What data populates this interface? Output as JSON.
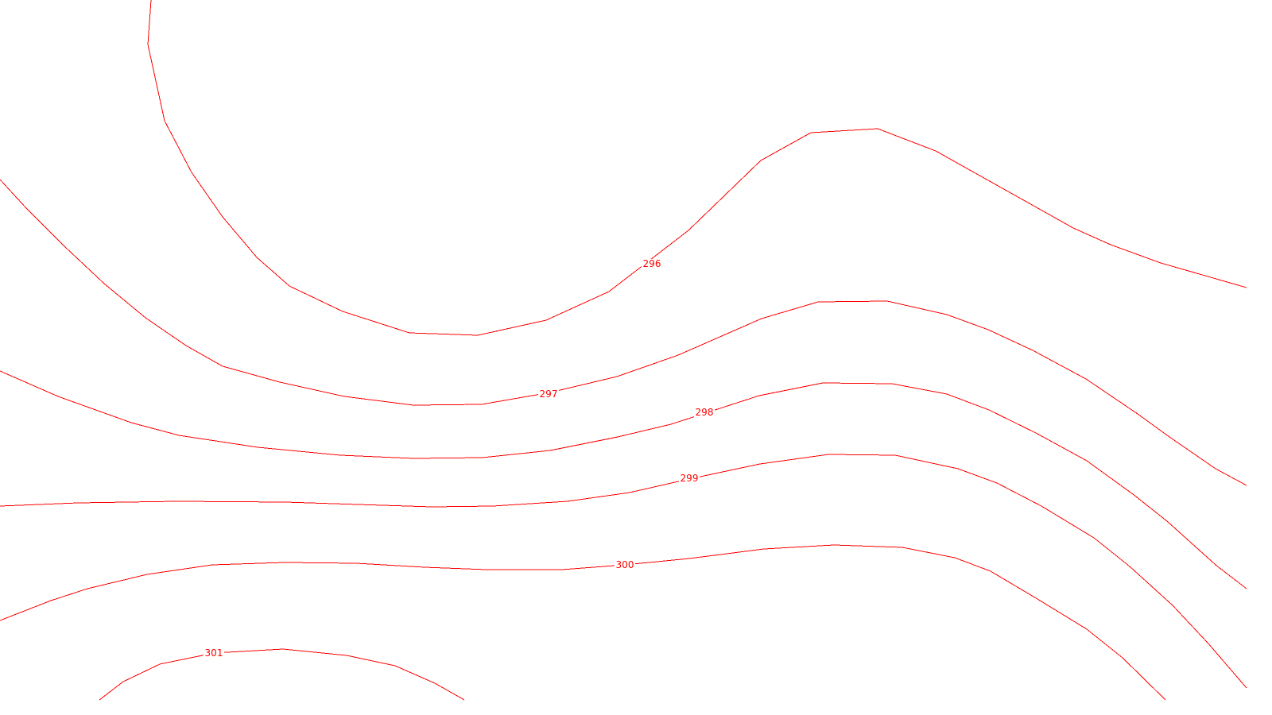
{
  "map": {
    "type": "contour",
    "line_color": "#ff0000",
    "background_color": "#ffffff",
    "contours": [
      {
        "level": "296"
      },
      {
        "level": "297"
      },
      {
        "level": "298"
      },
      {
        "level": "299"
      },
      {
        "level": "300"
      },
      {
        "level": "301"
      }
    ]
  }
}
